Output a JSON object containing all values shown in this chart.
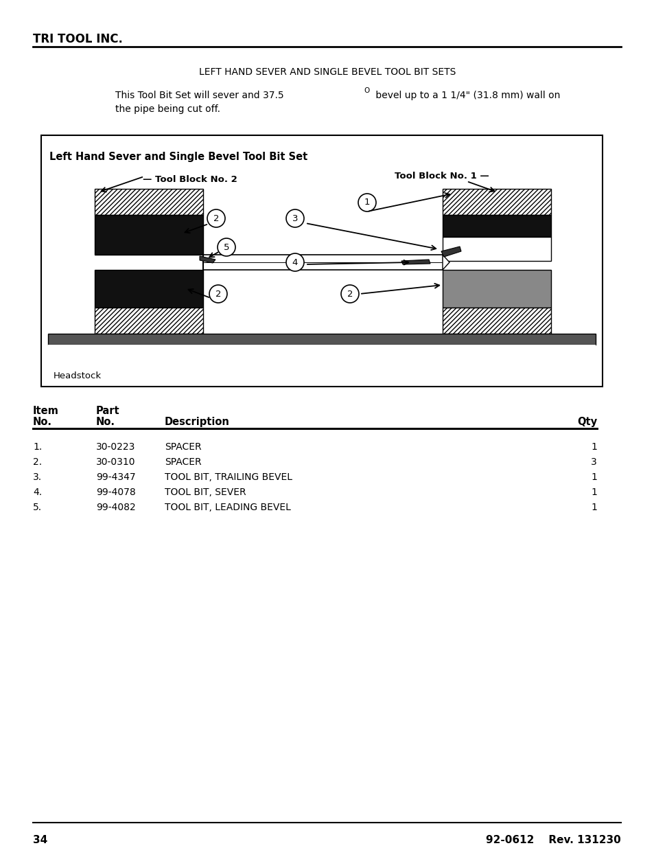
{
  "page_title": "TRI TOOL INC.",
  "section_title": "LEFT HAND SEVER AND SINGLE BEVEL TOOL BIT SETS",
  "desc_line1": "This Tool Bit Set will sever and 37.5",
  "desc_sup": "O",
  "desc_line1b": " bevel up to a 1 1/4\" (31.8 mm) wall on",
  "desc_line2": "the pipe being cut off.",
  "diagram_title": "Left Hand Sever and Single Bevel Tool Bit Set",
  "headstock_label": "Headstock",
  "tool_block_1": "Tool Block No. 1",
  "tool_block_2": "Tool Block No. 2",
  "table_rows": [
    [
      "1.",
      "30-0223",
      "SPACER",
      "1"
    ],
    [
      "2.",
      "30-0310",
      "SPACER",
      "3"
    ],
    [
      "3.",
      "99-4347",
      "TOOL BIT, TRAILING BEVEL",
      "1"
    ],
    [
      "4.",
      "99-4078",
      "TOOL BIT, SEVER",
      "1"
    ],
    [
      "5.",
      "99-4082",
      "TOOL BIT, LEADING BEVEL",
      "1"
    ]
  ],
  "page_number": "34",
  "doc_number": "92-0612    Rev. 131230",
  "bg_color": "#ffffff"
}
